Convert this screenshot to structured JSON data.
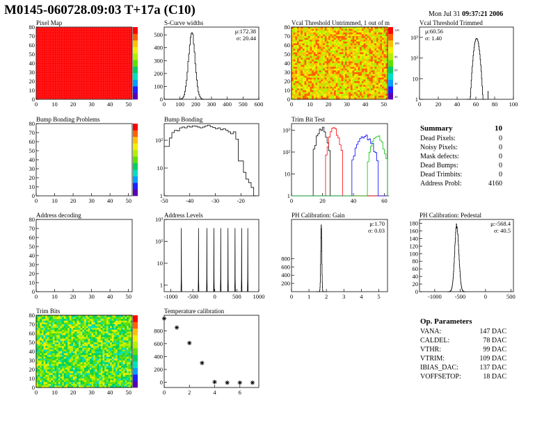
{
  "header": {
    "title": "M0145-060728.09:03 T+17a (C10)",
    "date_prefix": "Mon Jul 31 ",
    "date_time": "09:37:21 2006"
  },
  "colors": {
    "roc_palette": [
      "#5a00b4",
      "#2020ff",
      "#00a0ff",
      "#00e0c0",
      "#00d060",
      "#60e000",
      "#b0f000",
      "#f0f000",
      "#ffc000",
      "#ff6000",
      "#ff0000"
    ],
    "histogram": "#000000",
    "trim_series": [
      "#000000",
      "#ff0000",
      "#0000ff",
      "#00c000"
    ],
    "axis_frame": "#000000"
  },
  "chart_data": [
    {
      "id": "pixel_map",
      "type": "heatmap",
      "title": "Pixel Map",
      "x_ticks": [
        0,
        10,
        20,
        30,
        40,
        50
      ],
      "y_ticks": [
        0,
        10,
        20,
        30,
        40,
        50,
        60,
        70,
        80
      ],
      "xlim": [
        0,
        52
      ],
      "ylim": [
        0,
        80
      ],
      "fill": "uniform",
      "fill_level": 1.0,
      "colorbar": {
        "max_level": 1.0
      }
    },
    {
      "id": "scurve_widths",
      "type": "histogram",
      "title": "S-Curve widths",
      "x_ticks": [
        0,
        100,
        200,
        300,
        400,
        500,
        600
      ],
      "y_ticks": [
        0,
        100,
        200,
        300,
        400,
        500
      ],
      "xlim": [
        0,
        600
      ],
      "ylim": [
        0,
        560
      ],
      "mean": 172.38,
      "sigma": 20.44,
      "peak": 520,
      "stats": [
        "μ:172.38",
        "σ: 20.44"
      ]
    },
    {
      "id": "vcal_untrimmed",
      "type": "heatmap",
      "title": "Vcal Threshold Untrimmed, 1 out of m",
      "x_ticks": [
        0,
        10,
        20,
        30,
        40,
        50
      ],
      "y_ticks": [
        0,
        10,
        20,
        30,
        40,
        50,
        60,
        70,
        80
      ],
      "xlim": [
        0,
        52
      ],
      "ylim": [
        0,
        80
      ],
      "fill": "noise",
      "level_range": [
        0.55,
        0.95
      ],
      "colorbar": {
        "tick_labels": [
          "120",
          "100",
          "80",
          "60",
          "40",
          "20"
        ]
      }
    },
    {
      "id": "vcal_trimmed",
      "type": "histogram",
      "title": "Vcal Threshold Trimmed",
      "x_ticks": [
        0,
        20,
        40,
        60,
        80,
        100
      ],
      "xlim": [
        0,
        100
      ],
      "log_y": true,
      "y_tick_labels": [
        "1",
        "10",
        "10²",
        "10³"
      ],
      "ylim_decades": [
        0,
        3.5
      ],
      "mean": 60.56,
      "sigma": 1.4,
      "peak": 900,
      "outlier": 73,
      "stats": [
        "μ:60.56",
        "σ: 1.40"
      ]
    },
    {
      "id": "bump_bonding_problems",
      "type": "heatmap",
      "title": "Bump Bonding Problems",
      "x_ticks": [
        0,
        10,
        20,
        30,
        40,
        50
      ],
      "y_ticks": [
        0,
        10,
        20,
        30,
        40,
        50,
        60,
        70,
        80
      ],
      "xlim": [
        0,
        52
      ],
      "ylim": [
        0,
        80
      ],
      "fill": "empty",
      "colorbar": {
        "max_level": 1.0
      }
    },
    {
      "id": "bump_bonding",
      "type": "histogram",
      "title": "Bump Bonding",
      "x_ticks": [
        -50,
        -40,
        -30,
        -20
      ],
      "xlim": [
        -50,
        -13
      ],
      "log_y": true,
      "y_tick_labels": [
        "1",
        "10",
        "10²"
      ],
      "ylim_decades": [
        0,
        2.6
      ],
      "bins": [
        [
          -50,
          -48,
          60
        ],
        [
          -48,
          -47,
          120
        ],
        [
          -47,
          -46,
          190
        ],
        [
          -46,
          -45,
          230
        ],
        [
          -45,
          -44,
          220
        ],
        [
          -44,
          -43,
          280
        ],
        [
          -43,
          -42,
          300
        ],
        [
          -42,
          -41,
          280
        ],
        [
          -41,
          -40,
          320
        ],
        [
          -40,
          -39,
          300
        ],
        [
          -39,
          -38,
          330
        ],
        [
          -38,
          -37,
          320
        ],
        [
          -37,
          -36,
          300
        ],
        [
          -36,
          -35,
          280
        ],
        [
          -35,
          -34,
          300
        ],
        [
          -34,
          -33,
          330
        ],
        [
          -33,
          -32,
          350
        ],
        [
          -32,
          -31,
          310
        ],
        [
          -31,
          -30,
          290
        ],
        [
          -30,
          -29,
          260
        ],
        [
          -29,
          -28,
          280
        ],
        [
          -28,
          -27,
          240
        ],
        [
          -27,
          -26,
          260
        ],
        [
          -26,
          -25,
          230
        ],
        [
          -25,
          -24,
          200
        ],
        [
          -24,
          -23,
          170
        ],
        [
          -23,
          -22,
          200
        ],
        [
          -22,
          -21,
          110
        ],
        [
          -21,
          -20,
          18
        ],
        [
          -20,
          -19,
          18
        ],
        [
          -19,
          -18,
          7
        ],
        [
          -18,
          -17,
          4
        ],
        [
          -17,
          -16,
          3
        ],
        [
          -16,
          -15,
          2
        ],
        [
          -15,
          -14,
          1
        ]
      ]
    },
    {
      "id": "trim_bit_test",
      "type": "histogram",
      "title": "Trim Bit Test",
      "x_ticks": [
        0,
        20,
        40,
        60
      ],
      "xlim": [
        0,
        62
      ],
      "log_y": true,
      "y_tick_labels": [
        "1",
        "10",
        "10²",
        "10³"
      ],
      "ylim_decades": [
        0,
        3.3
      ],
      "series": [
        {
          "center": 19,
          "width": 5,
          "peak": 1200
        },
        {
          "center": 27,
          "width": 5,
          "peak": 1100
        },
        {
          "center": 47,
          "width": 8,
          "peak": 500
        },
        {
          "center": 55,
          "width": 6,
          "peak": 450
        }
      ]
    },
    {
      "id": "address_decoding",
      "type": "heatmap",
      "title": "Address decoding",
      "x_ticks": [
        0,
        10,
        20,
        30,
        40,
        50
      ],
      "y_ticks": [
        0,
        10,
        20,
        30,
        40,
        50,
        60,
        70,
        80
      ],
      "xlim": [
        0,
        52
      ],
      "ylim": [
        0,
        80
      ],
      "fill": "empty"
    },
    {
      "id": "address_levels",
      "type": "histogram",
      "title": "Address Levels",
      "x_ticks": [
        -1000,
        -500,
        0,
        500,
        1000
      ],
      "x_tick_labels": [
        "-1000",
        "-500",
        "0",
        "500",
        "1000"
      ],
      "xlim": [
        -1150,
        1000
      ],
      "log_y": true,
      "y_tick_labels": [
        "1",
        "10",
        "10²",
        "10³"
      ],
      "ylim_decades": [
        -0.3,
        3.0
      ],
      "peaks": [
        -760,
        -370,
        -180,
        -20,
        135,
        300,
        460,
        610,
        750
      ],
      "peak_height": 400
    },
    {
      "id": "ph_gain",
      "type": "histogram",
      "title": "PH Calibration: Gain",
      "x_ticks": [
        0,
        1,
        2,
        3,
        4,
        5
      ],
      "xlim": [
        0,
        5.5
      ],
      "y_ticks": [
        200,
        400,
        600,
        800
      ],
      "ylim": [
        0,
        1750
      ],
      "mean": 1.7,
      "sigma": 0.03,
      "peak": 1620,
      "stats": [
        "μ:1.70",
        "σ: 0.03"
      ]
    },
    {
      "id": "ph_pedestal",
      "type": "histogram",
      "title": "PH Calibration: Pedestal",
      "x_ticks": [
        -1000,
        -500,
        0,
        500
      ],
      "xlim": [
        -1300,
        550
      ],
      "y_ticks": [
        0,
        20,
        40,
        60,
        80,
        100,
        120,
        140,
        160,
        180
      ],
      "ylim": [
        0,
        190
      ],
      "mean": -568.4,
      "sigma": 40.5,
      "peak": 175,
      "stats": [
        "μ:-568.4",
        "σ: 40.5"
      ]
    },
    {
      "id": "trim_bits",
      "type": "heatmap",
      "title": "Trim Bits",
      "x_ticks": [
        0,
        10,
        20,
        30,
        40,
        50
      ],
      "y_ticks": [
        0,
        10,
        20,
        30,
        40,
        50,
        60,
        70,
        80
      ],
      "xlim": [
        0,
        52
      ],
      "ylim": [
        0,
        80
      ],
      "fill": "noise",
      "level_range": [
        0.3,
        0.7
      ],
      "colorbar": {
        "max_level": 1.0
      }
    },
    {
      "id": "temperature_calibration",
      "type": "scatter",
      "title": "Temperature calibration",
      "x_ticks": [
        0,
        2,
        4,
        6
      ],
      "xlim": [
        0,
        7.5
      ],
      "y_ticks": [
        0,
        200,
        400,
        600,
        800
      ],
      "ylim": [
        -80,
        1040
      ],
      "x": [
        0,
        1,
        2,
        3,
        4,
        5,
        6,
        7
      ],
      "y": [
        990,
        850,
        610,
        300,
        5,
        -5,
        -5,
        -5
      ]
    }
  ],
  "summary": {
    "title": "Summary",
    "chip": "10",
    "rows": [
      {
        "label": "Dead Pixels:",
        "value": "0"
      },
      {
        "label": "Noisy Pixels:",
        "value": "0"
      },
      {
        "label": "Mask defects:",
        "value": "0"
      },
      {
        "label": "Dead Bumps:",
        "value": "0"
      },
      {
        "label": "Dead Trimbits:",
        "value": "0"
      },
      {
        "label": "Address Probl:",
        "value": "4160"
      }
    ]
  },
  "op_parameters": {
    "title": "Op. Parameters",
    "rows": [
      {
        "label": "VANA:",
        "value": "147 DAC"
      },
      {
        "label": "CALDEL:",
        "value": "78 DAC"
      },
      {
        "label": "VTHR:",
        "value": "99 DAC"
      },
      {
        "label": "VTRIM:",
        "value": "109 DAC"
      },
      {
        "label": "IBIAS_DAC:",
        "value": "137 DAC"
      },
      {
        "label": "VOFFSETOP:",
        "value": "18 DAC"
      }
    ]
  }
}
